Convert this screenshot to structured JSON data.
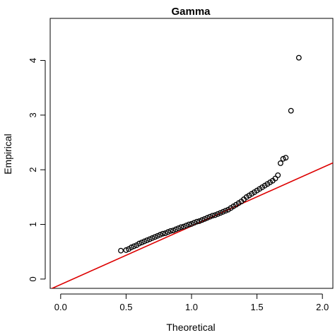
{
  "chart_data": {
    "type": "scatter",
    "title": "Gamma",
    "xlabel": "Theoretical",
    "ylabel": "Empirical",
    "xlim": [
      -0.08,
      2.08
    ],
    "ylim": [
      -0.17,
      4.77
    ],
    "x_ticks": [
      0.0,
      0.5,
      1.0,
      1.5,
      2.0
    ],
    "x_tick_labels": [
      "0.0",
      "0.5",
      "1.0",
      "1.5",
      "2.0"
    ],
    "y_ticks": [
      0,
      1,
      2,
      3,
      4
    ],
    "y_tick_labels": [
      "0",
      "1",
      "2",
      "3",
      "4"
    ],
    "grid": false,
    "legend": "none",
    "marker": "open-circle",
    "point_color": "#000000",
    "line_color": "#dd0000",
    "reference_line": {
      "intercept": -0.1,
      "slope": 1.07
    },
    "points": {
      "x": [
        0.46,
        0.5,
        0.52,
        0.54,
        0.56,
        0.58,
        0.6,
        0.62,
        0.64,
        0.66,
        0.68,
        0.7,
        0.72,
        0.74,
        0.76,
        0.78,
        0.8,
        0.82,
        0.84,
        0.86,
        0.88,
        0.9,
        0.92,
        0.94,
        0.96,
        0.98,
        1.0,
        1.02,
        1.04,
        1.06,
        1.08,
        1.1,
        1.12,
        1.14,
        1.16,
        1.18,
        1.2,
        1.22,
        1.24,
        1.26,
        1.28,
        1.3,
        1.32,
        1.34,
        1.36,
        1.38,
        1.4,
        1.42,
        1.44,
        1.46,
        1.48,
        1.5,
        1.52,
        1.54,
        1.56,
        1.58,
        1.6,
        1.62,
        1.64,
        1.66,
        1.68,
        1.7,
        1.72,
        1.76,
        1.82
      ],
      "y": [
        0.52,
        0.53,
        0.55,
        0.58,
        0.6,
        0.62,
        0.65,
        0.67,
        0.69,
        0.71,
        0.73,
        0.75,
        0.77,
        0.79,
        0.81,
        0.83,
        0.84,
        0.86,
        0.88,
        0.89,
        0.91,
        0.93,
        0.95,
        0.96,
        0.98,
        1.0,
        1.01,
        1.03,
        1.05,
        1.06,
        1.08,
        1.1,
        1.12,
        1.14,
        1.16,
        1.17,
        1.19,
        1.21,
        1.23,
        1.25,
        1.27,
        1.3,
        1.33,
        1.36,
        1.39,
        1.42,
        1.46,
        1.5,
        1.53,
        1.56,
        1.59,
        1.62,
        1.65,
        1.68,
        1.71,
        1.74,
        1.77,
        1.8,
        1.84,
        1.9,
        2.12,
        2.2,
        2.22,
        3.08,
        4.05
      ]
    }
  }
}
